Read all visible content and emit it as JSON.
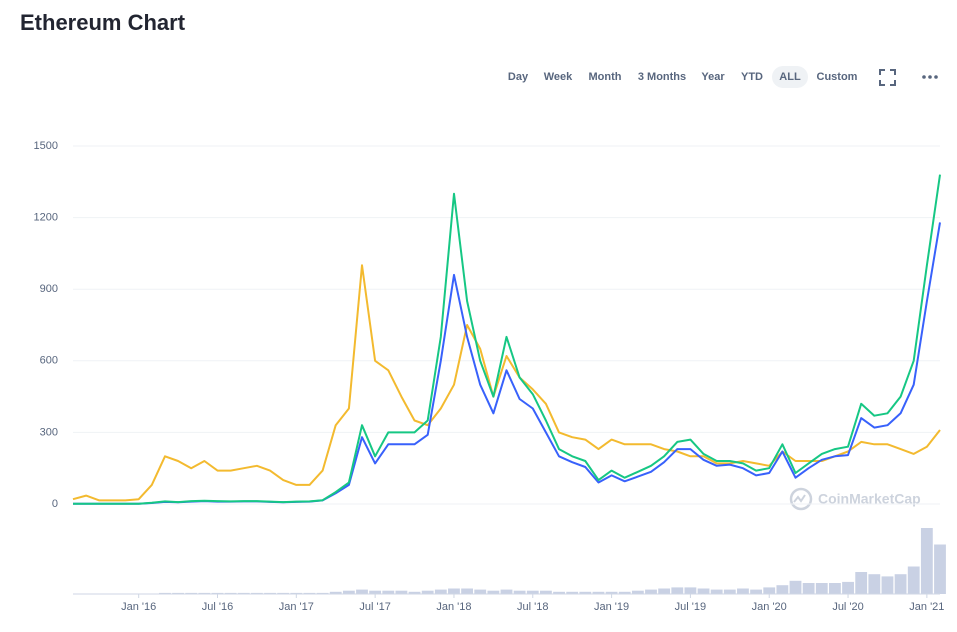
{
  "chart_data": {
    "type": "line",
    "title": "Ethereum Chart",
    "range_buttons": [
      "Day",
      "Week",
      "Month",
      "3 Months",
      "Year",
      "YTD",
      "ALL",
      "Custom"
    ],
    "active_button": 6,
    "watermark": "CoinMarketCap",
    "categories": [
      null,
      null,
      null,
      null,
      null,
      "Jan '16",
      null,
      null,
      null,
      null,
      null,
      "Jul '16",
      null,
      null,
      null,
      null,
      null,
      "Jan '17",
      null,
      null,
      null,
      null,
      null,
      "Jul '17",
      null,
      null,
      null,
      null,
      null,
      "Jan '18",
      null,
      null,
      null,
      null,
      null,
      "Jul '18",
      null,
      null,
      null,
      null,
      null,
      "Jan '19",
      null,
      null,
      null,
      null,
      null,
      "Jul '19",
      null,
      null,
      null,
      null,
      null,
      "Jan '20",
      null,
      null,
      null,
      null,
      null,
      "Jul '20",
      null,
      null,
      null,
      null,
      null,
      "Jan '21",
      null
    ],
    "series": [
      {
        "color": "#f3ba2f",
        "values": [
          20,
          35,
          15,
          15,
          15,
          20,
          80,
          200,
          180,
          150,
          180,
          140,
          140,
          150,
          160,
          140,
          100,
          80,
          80,
          140,
          330,
          400,
          1000,
          600,
          560,
          450,
          350,
          330,
          400,
          500,
          750,
          650,
          450,
          620,
          530,
          480,
          420,
          300,
          280,
          270,
          230,
          270,
          250,
          250,
          250,
          230,
          220,
          200,
          200,
          170,
          170,
          180,
          170,
          160,
          220,
          180,
          180,
          180,
          200,
          220,
          260,
          250,
          250,
          230,
          210,
          240,
          310
        ]
      },
      {
        "color": "#3861fb",
        "values": [
          1,
          1,
          1,
          1,
          1,
          1,
          4,
          9,
          7,
          10,
          12,
          10,
          10,
          11,
          11,
          9,
          7,
          9,
          10,
          15,
          45,
          80,
          280,
          170,
          250,
          250,
          250,
          290,
          600,
          960,
          700,
          500,
          380,
          560,
          440,
          400,
          300,
          200,
          175,
          155,
          90,
          120,
          95,
          115,
          135,
          175,
          230,
          230,
          185,
          160,
          165,
          150,
          120,
          130,
          220,
          110,
          150,
          185,
          200,
          205,
          360,
          320,
          330,
          380,
          500,
          850,
          1180
        ]
      },
      {
        "color": "#16c784",
        "values": [
          1,
          1,
          1,
          1,
          1,
          1,
          5,
          11,
          8,
          12,
          14,
          12,
          11,
          12,
          12,
          10,
          8,
          10,
          11,
          16,
          50,
          90,
          330,
          200,
          300,
          300,
          300,
          350,
          700,
          1300,
          850,
          600,
          450,
          700,
          530,
          460,
          350,
          230,
          200,
          180,
          100,
          140,
          110,
          135,
          160,
          200,
          260,
          270,
          210,
          180,
          180,
          170,
          140,
          150,
          250,
          130,
          170,
          210,
          230,
          240,
          420,
          370,
          380,
          450,
          600,
          1000,
          1380
        ]
      }
    ],
    "volume": [
      0,
      0,
      0,
      0,
      0,
      0,
      0,
      1,
      1,
      1,
      1,
      1,
      1,
      1,
      1,
      1,
      1,
      1,
      1,
      1,
      2,
      3,
      4,
      3,
      3,
      3,
      2,
      3,
      4,
      5,
      5,
      4,
      3,
      4,
      3,
      3,
      3,
      2,
      2,
      2,
      2,
      2,
      2,
      3,
      4,
      5,
      6,
      6,
      5,
      4,
      4,
      5,
      4,
      6,
      8,
      12,
      10,
      10,
      10,
      11,
      20,
      18,
      16,
      18,
      25,
      60,
      45
    ],
    "volume_color": "#c9d1e4",
    "ylim": [
      0,
      1500
    ],
    "yticks": [
      0,
      300,
      600,
      900,
      1200,
      1500
    ],
    "grid": true
  }
}
